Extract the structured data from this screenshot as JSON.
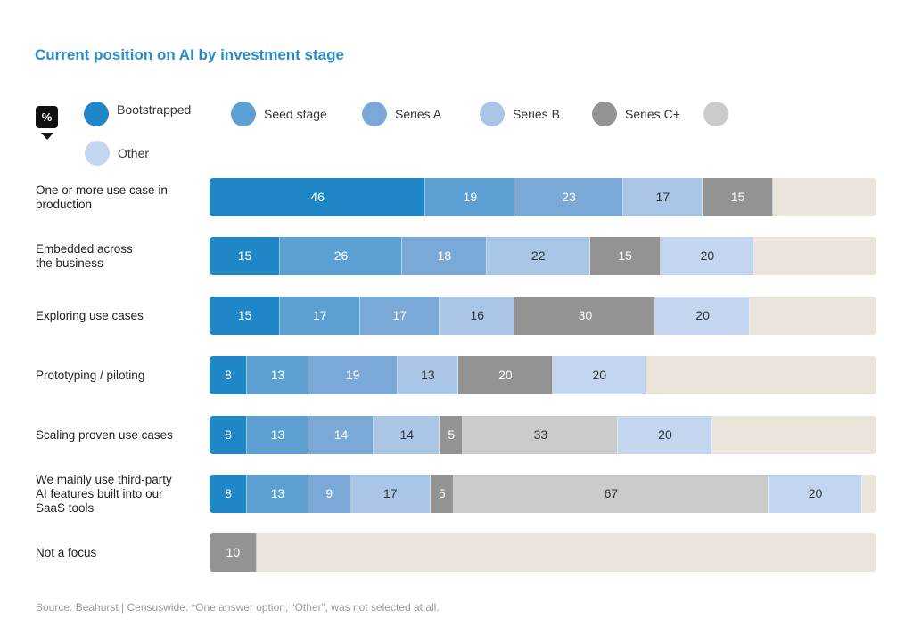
{
  "title": "Current position on AI by investment stage",
  "unit_badge": "%",
  "source": "Source: Beahurst | Censuswide.  *One answer option, “Other”, was not selected at all.",
  "legend": [
    {
      "label": "Bootstrapped",
      "color": "#1f87c6"
    },
    {
      "label": "Seed stage",
      "color": "#5b9fd3"
    },
    {
      "label": "Series A",
      "color": "#7aa9d8"
    },
    {
      "label": "Series B",
      "color": "#a9c6e6"
    },
    {
      "label": "Series C+",
      "color": "#939393"
    },
    {
      "label": "",
      "color": "#cbcbcb"
    },
    {
      "label": "Other",
      "color": "#c3d5ef"
    }
  ],
  "chart_data": {
    "type": "bar",
    "orientation": "horizontal",
    "stacked": true,
    "total_scale": 142,
    "remainder_color": "#ebe4da",
    "categories": [
      "One or more use case in production",
      "Embedded across the business",
      "Exploring use cases",
      "Prototyping / piloting",
      "Scaling proven use cases",
      "We mainly use third-party AI features built into our SaaS tools",
      "Not a focus"
    ],
    "category_lines": [
      [
        "One or more use case in",
        "production"
      ],
      [
        "Embedded across",
        "the business"
      ],
      [
        "Exploring use cases"
      ],
      [
        "Prototyping / piloting"
      ],
      [
        "Scaling proven use cases"
      ],
      [
        "We mainly use third-party",
        "AI features built into our",
        "SaaS tools"
      ],
      [
        "Not a focus"
      ]
    ],
    "rows": [
      [
        {
          "v": 46,
          "c": "#1f87c6",
          "t": "#ffffff"
        },
        {
          "v": 19,
          "c": "#5b9fd3",
          "t": "#ffffff"
        },
        {
          "v": 23,
          "c": "#7aa9d8",
          "t": "#ffffff"
        },
        {
          "v": 17,
          "c": "#a9c6e6",
          "t": "#333333"
        },
        {
          "v": 15,
          "c": "#939393",
          "t": "#ffffff"
        }
      ],
      [
        {
          "v": 15,
          "c": "#1f87c6",
          "t": "#ffffff"
        },
        {
          "v": 26,
          "c": "#5b9fd3",
          "t": "#ffffff"
        },
        {
          "v": 18,
          "c": "#7aa9d8",
          "t": "#ffffff"
        },
        {
          "v": 22,
          "c": "#a9c6e6",
          "t": "#333333"
        },
        {
          "v": 15,
          "c": "#939393",
          "t": "#ffffff"
        },
        {
          "v": 20,
          "c": "#c3d5ef",
          "t": "#333333"
        }
      ],
      [
        {
          "v": 15,
          "c": "#1f87c6",
          "t": "#ffffff"
        },
        {
          "v": 17,
          "c": "#5b9fd3",
          "t": "#ffffff"
        },
        {
          "v": 17,
          "c": "#7aa9d8",
          "t": "#ffffff"
        },
        {
          "v": 16,
          "c": "#a9c6e6",
          "t": "#333333"
        },
        {
          "v": 30,
          "c": "#939393",
          "t": "#ffffff"
        },
        {
          "v": 20,
          "c": "#c3d5ef",
          "t": "#333333"
        }
      ],
      [
        {
          "v": 8,
          "c": "#1f87c6",
          "t": "#ffffff"
        },
        {
          "v": 13,
          "c": "#5b9fd3",
          "t": "#ffffff"
        },
        {
          "v": 19,
          "c": "#7aa9d8",
          "t": "#ffffff"
        },
        {
          "v": 13,
          "c": "#a9c6e6",
          "t": "#333333"
        },
        {
          "v": 20,
          "c": "#939393",
          "t": "#ffffff"
        },
        {
          "v": 20,
          "c": "#c3d5ef",
          "t": "#333333"
        }
      ],
      [
        {
          "v": 8,
          "c": "#1f87c6",
          "t": "#ffffff"
        },
        {
          "v": 13,
          "c": "#5b9fd3",
          "t": "#ffffff"
        },
        {
          "v": 14,
          "c": "#7aa9d8",
          "t": "#ffffff"
        },
        {
          "v": 14,
          "c": "#a9c6e6",
          "t": "#333333"
        },
        {
          "v": 5,
          "c": "#939393",
          "t": "#ffffff"
        },
        {
          "v": 33,
          "c": "#cbcbcb",
          "t": "#333333"
        },
        {
          "v": 20,
          "c": "#c3d5ef",
          "t": "#333333"
        }
      ],
      [
        {
          "v": 8,
          "c": "#1f87c6",
          "t": "#ffffff"
        },
        {
          "v": 13,
          "c": "#5b9fd3",
          "t": "#ffffff"
        },
        {
          "v": 9,
          "c": "#7aa9d8",
          "t": "#ffffff"
        },
        {
          "v": 17,
          "c": "#a9c6e6",
          "t": "#333333"
        },
        {
          "v": 5,
          "c": "#939393",
          "t": "#ffffff"
        },
        {
          "v": 67,
          "c": "#cbcbcb",
          "t": "#333333"
        },
        {
          "v": 20,
          "c": "#c3d5ef",
          "t": "#333333"
        }
      ],
      [
        {
          "v": 10,
          "c": "#939393",
          "t": "#ffffff"
        }
      ]
    ]
  }
}
